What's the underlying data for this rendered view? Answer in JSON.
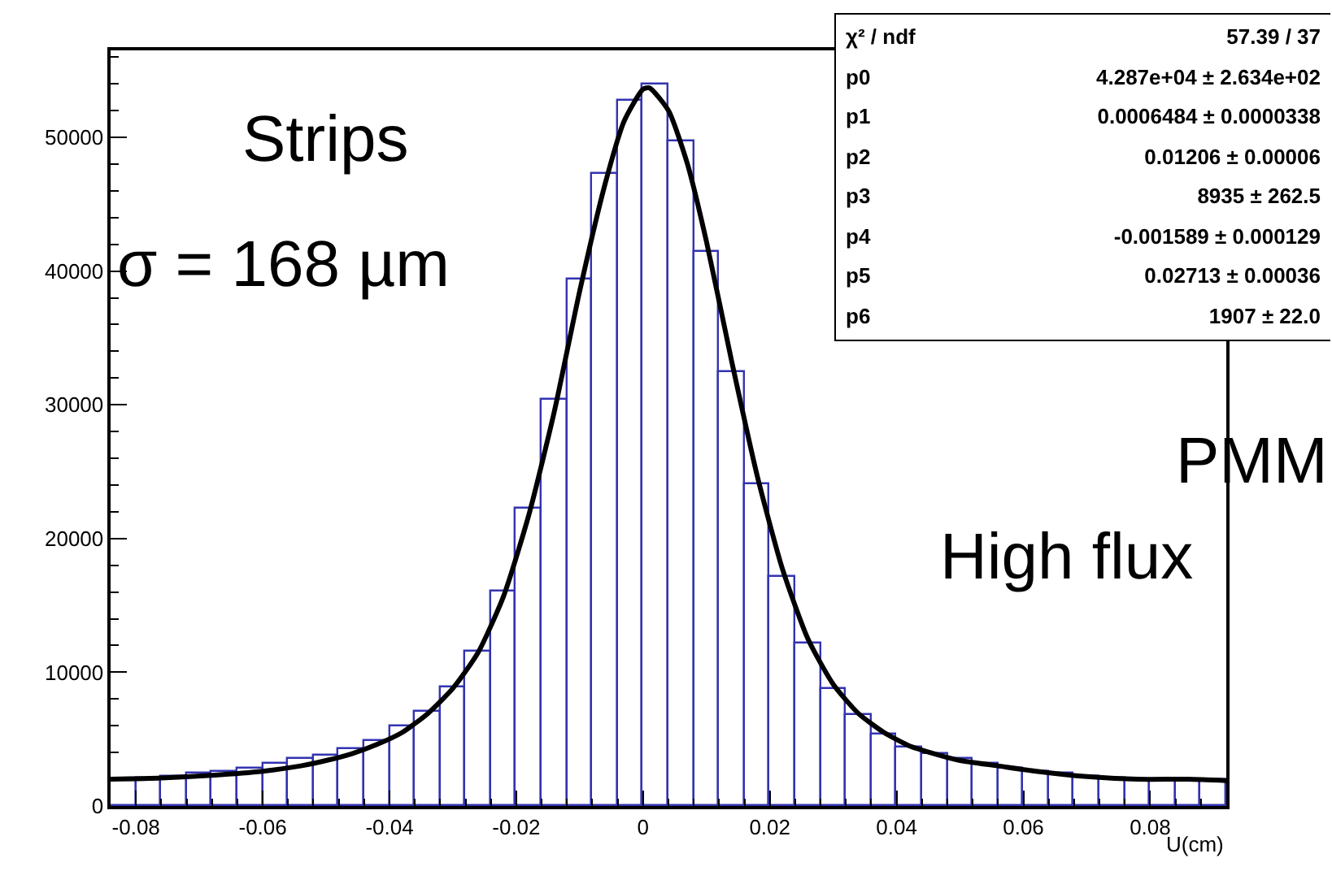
{
  "chart_data": {
    "type": "histogram",
    "xlabel": "U(cm)",
    "bins": [
      -0.084,
      -0.08,
      -0.076,
      -0.072,
      -0.068,
      -0.064,
      -0.06,
      -0.056,
      -0.052,
      -0.048,
      -0.044,
      -0.04,
      -0.036,
      -0.032,
      -0.028,
      -0.024,
      -0.02,
      -0.016,
      -0.012,
      -0.008,
      -0.004,
      0,
      0.004,
      0.008,
      0.012,
      0.016,
      0.02,
      0.024,
      0.028,
      0.032,
      0.036,
      0.04,
      0.044,
      0.048,
      0.052,
      0.056,
      0.06,
      0.064,
      0.068,
      0.072,
      0.076,
      0.08,
      0.084,
      0.088,
      0.092
    ],
    "values": [
      2000,
      2100,
      2200,
      2400,
      2600,
      2800,
      3100,
      3500,
      3800,
      4300,
      4900,
      5900,
      7000,
      8900,
      11600,
      16100,
      22200,
      30400,
      39400,
      47300,
      52700,
      53900,
      49700,
      41400,
      32500,
      24000,
      17100,
      12100,
      8800,
      6800,
      5300,
      4400,
      3900,
      3500,
      3200,
      2800,
      2600,
      2400,
      2200,
      2100,
      2000,
      2000,
      2000,
      1900
    ],
    "color": "#3333b0",
    "series": [
      {
        "type": "line",
        "color": "#000000",
        "x": [
          -0.084,
          -0.076,
          -0.068,
          -0.06,
          -0.054,
          -0.05,
          -0.046,
          -0.042,
          -0.038,
          -0.034,
          -0.03,
          -0.026,
          -0.022,
          -0.018,
          -0.014,
          -0.01,
          -0.006,
          -0.003,
          0,
          0.001,
          0.004,
          0.007,
          0.01,
          0.014,
          0.018,
          0.022,
          0.026,
          0.03,
          0.034,
          0.038,
          0.042,
          0.046,
          0.05,
          0.056,
          0.062,
          0.07,
          0.078,
          0.086,
          0.092
        ],
        "values": [
          2000,
          2100,
          2300,
          2600,
          3000,
          3400,
          3900,
          4600,
          5500,
          6900,
          8800,
          11500,
          15700,
          21800,
          29500,
          38500,
          46500,
          51200,
          53600,
          53700,
          52000,
          48000,
          42200,
          33200,
          24700,
          17700,
          12500,
          9100,
          6900,
          5500,
          4500,
          3900,
          3400,
          3000,
          2600,
          2200,
          2000,
          2000,
          1900
        ]
      }
    ],
    "xlim": [
      -0.084,
      0.092
    ],
    "ylim": [
      0,
      56500
    ],
    "xticks": [
      -0.08,
      -0.06,
      -0.04,
      -0.02,
      0,
      0.02,
      0.04,
      0.06,
      0.08
    ],
    "yticks": [
      0,
      10000,
      20000,
      30000,
      40000,
      50000
    ],
    "grid": false,
    "legend": false,
    "annotations": [
      "Strips",
      "σ = 168 µm",
      "PMM",
      "High flux",
      "χ² / ndf",
      "57.39 / 37",
      "p0",
      "4.287e+04 ± 2.634e+02",
      "p1",
      "0.0006484 ± 0.0000338",
      "p2",
      "0.01206 ± 0.00006",
      "p3",
      "8935 ± 262.5",
      "p4",
      "-0.001589 ± 0.000129",
      "p5",
      "0.02713 ± 0.00036",
      "p6",
      "1907 ± 22.0"
    ]
  }
}
